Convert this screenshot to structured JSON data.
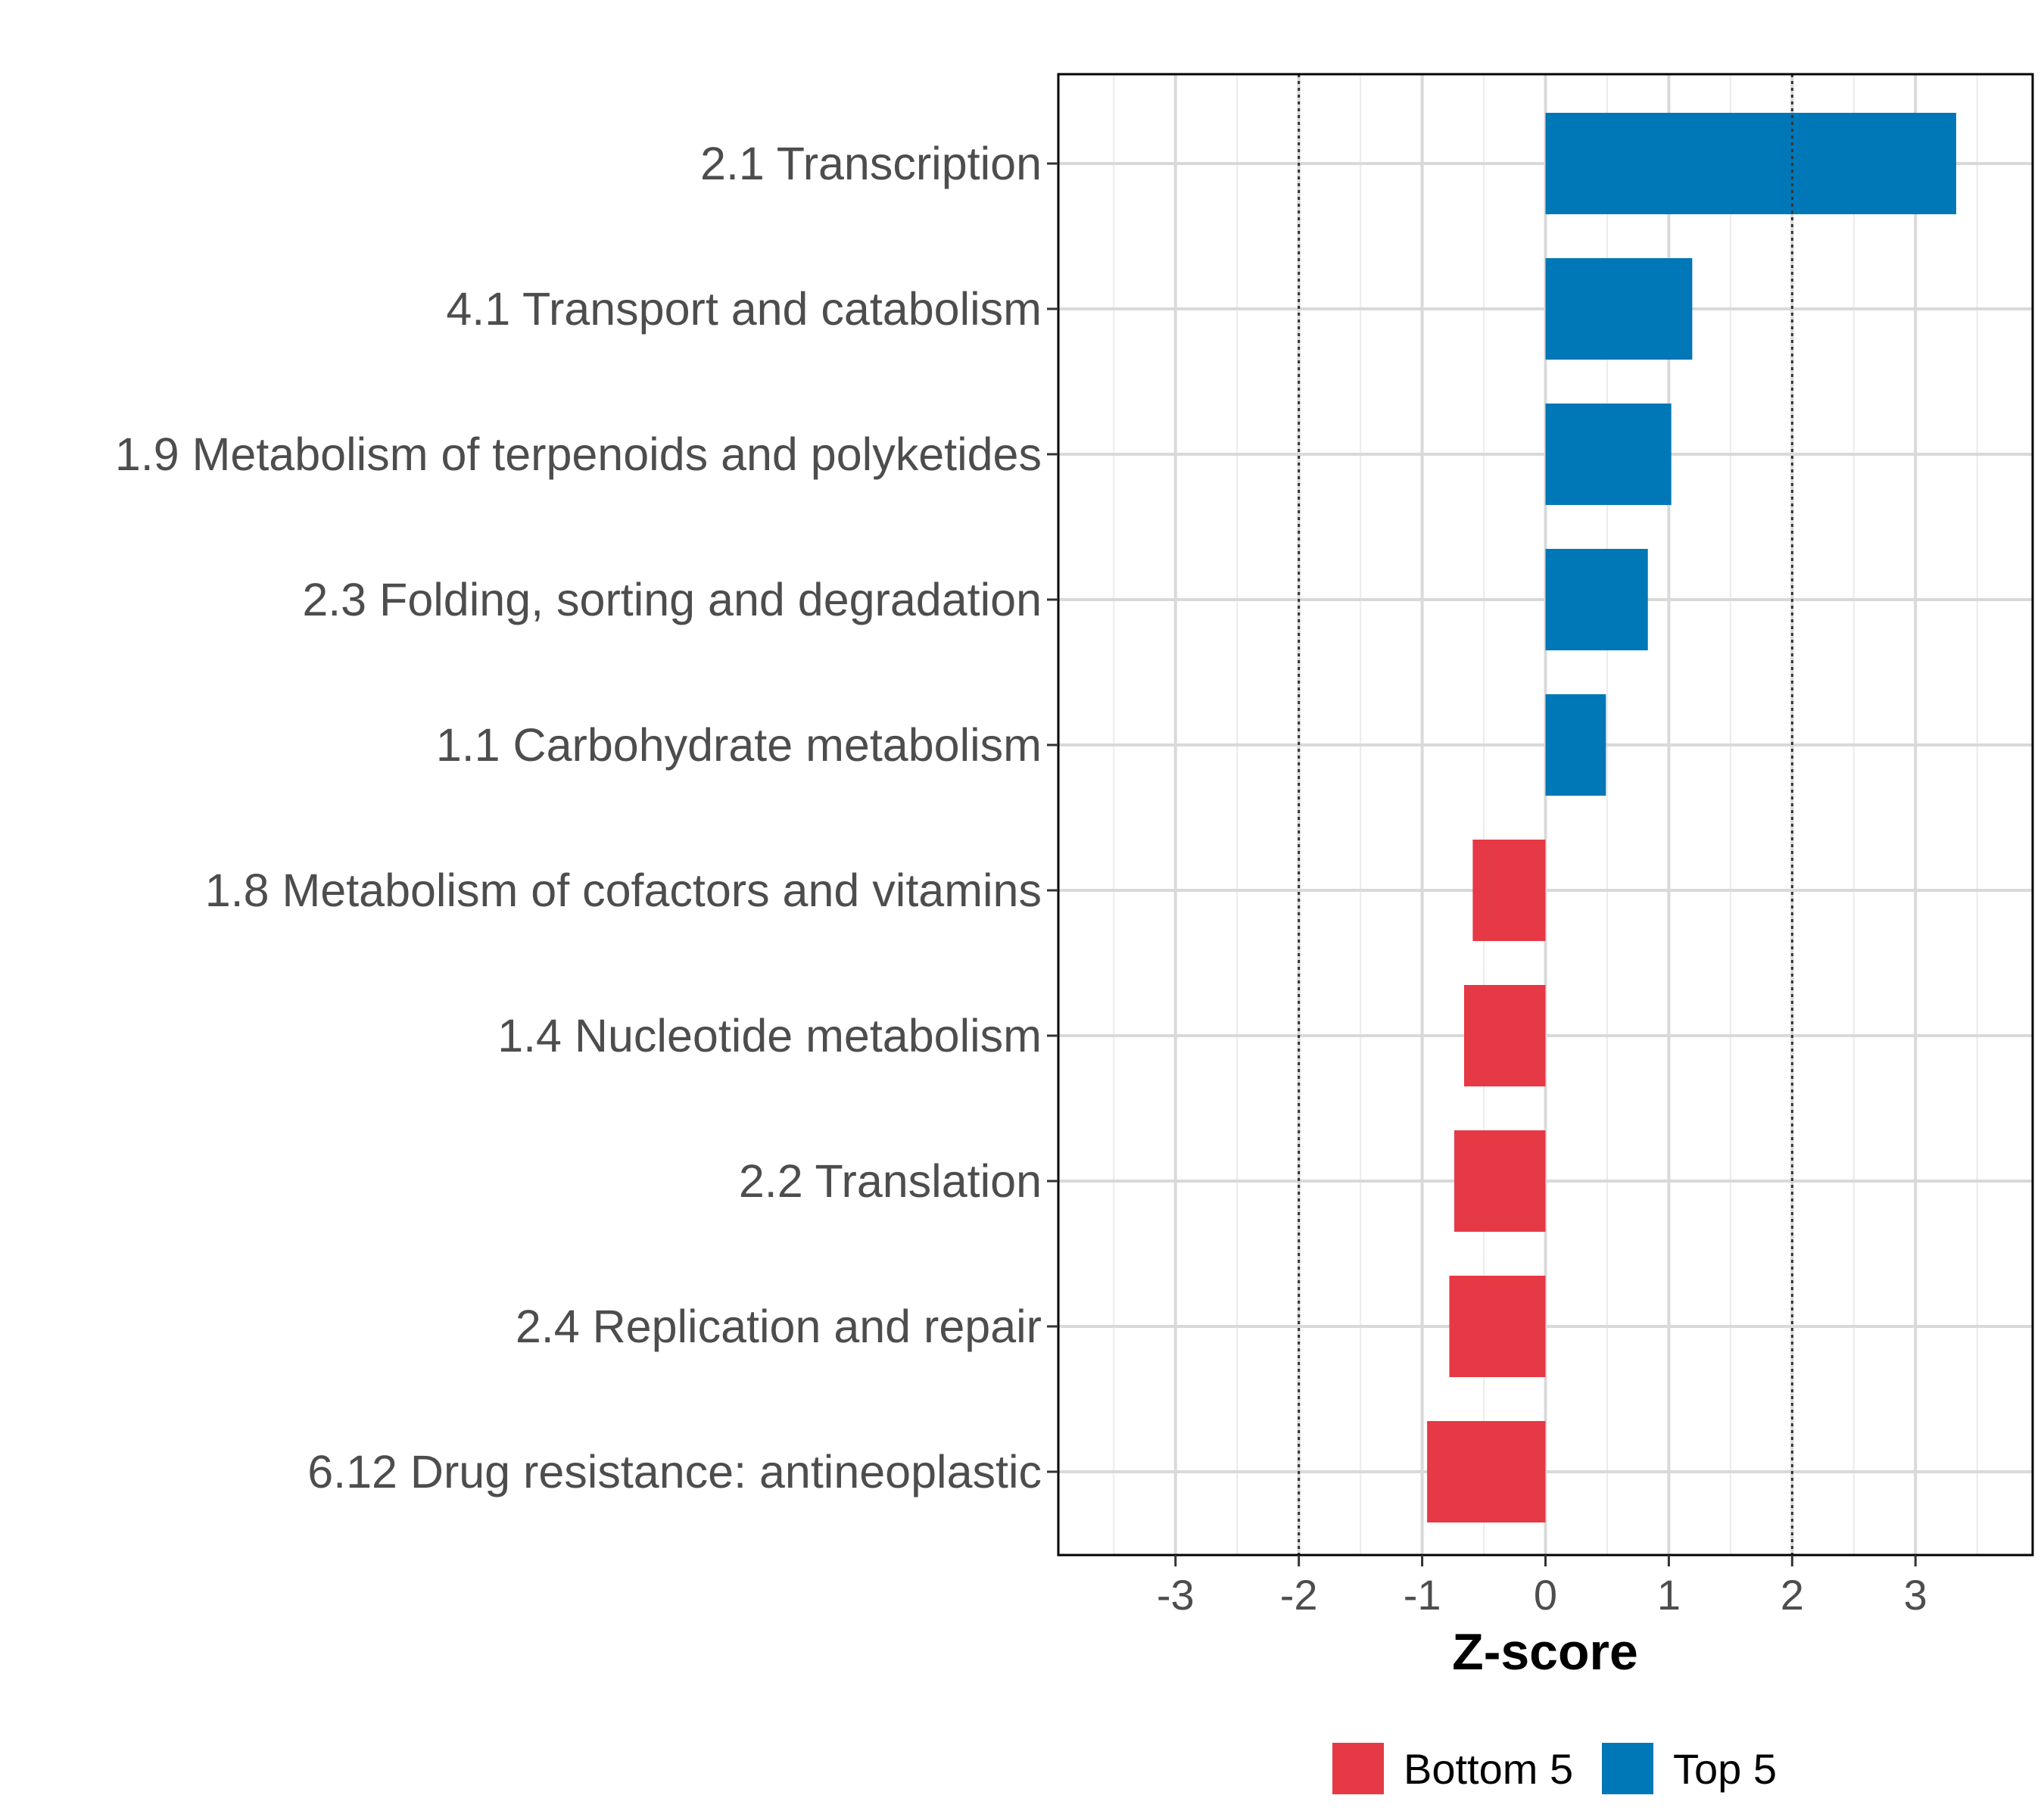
{
  "chart_data": {
    "type": "bar",
    "orientation": "horizontal",
    "title": "",
    "xlabel": "Z-score",
    "ylabel": "",
    "xlim": [
      -3.95,
      3.95
    ],
    "xticks": [
      -3,
      -2,
      -1,
      0,
      1,
      2,
      3
    ],
    "xtick_labels": [
      "-3",
      "-2",
      "-1",
      "0",
      "1",
      "2",
      "3"
    ],
    "reference_lines": [
      -2,
      2
    ],
    "grid": true,
    "legend_position": "bottom",
    "categories": [
      "2.1 Transcription",
      "4.1 Transport and catabolism",
      "1.9 Metabolism of terpenoids and polyketides",
      "2.3 Folding, sorting and degradation",
      "1.1 Carbohydrate metabolism",
      "1.8 Metabolism of cofactors and vitamins",
      "1.4 Nucleotide metabolism",
      "2.2 Translation",
      "2.4 Replication and repair",
      "6.12 Drug resistance: antineoplastic"
    ],
    "values": [
      3.33,
      1.19,
      1.02,
      0.83,
      0.49,
      -0.59,
      -0.66,
      -0.74,
      -0.78,
      -0.96
    ],
    "groups": [
      "Top 5",
      "Top 5",
      "Top 5",
      "Top 5",
      "Top 5",
      "Bottom 5",
      "Bottom 5",
      "Bottom 5",
      "Bottom 5",
      "Bottom 5"
    ],
    "legend": [
      {
        "name": "Bottom 5",
        "color": "#E63946"
      },
      {
        "name": "Top 5",
        "color": "#0077B6"
      }
    ]
  }
}
